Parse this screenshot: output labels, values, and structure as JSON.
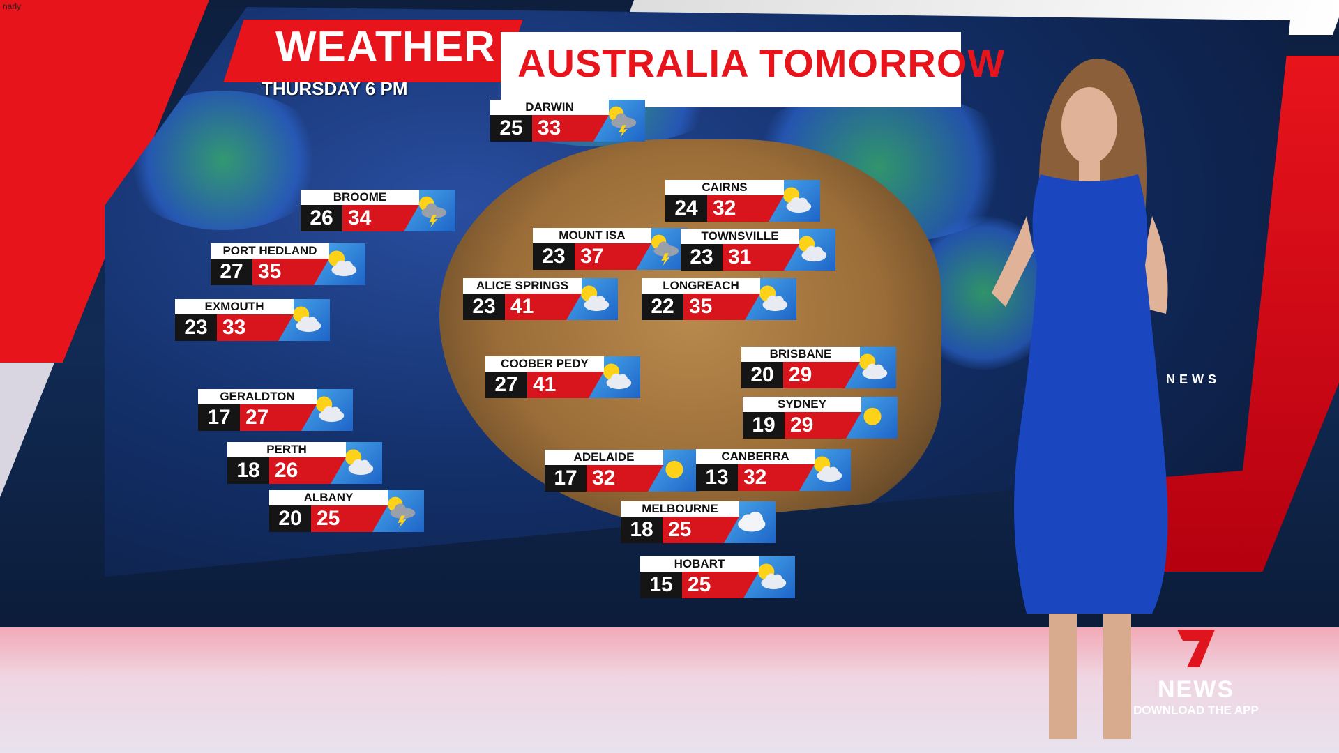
{
  "overlay": {
    "channel_tag": "narly"
  },
  "header": {
    "title_left": "WEATHER",
    "title_right": "AUSTRALIA TOMORROW",
    "subtitle": "THURSDAY 6 PM"
  },
  "colors": {
    "brand_red": "#e8141c",
    "min_box": "#151515",
    "icon_bg": "#1e64c8"
  },
  "cities": [
    {
      "name": "DARWIN",
      "min": "25",
      "max": "33",
      "icon": "storm"
    },
    {
      "name": "BROOME",
      "min": "26",
      "max": "34",
      "icon": "storm"
    },
    {
      "name": "PORT HEDLAND",
      "min": "27",
      "max": "35",
      "icon": "sun-cloud"
    },
    {
      "name": "EXMOUTH",
      "min": "23",
      "max": "33",
      "icon": "sun-cloud"
    },
    {
      "name": "GERALDTON",
      "min": "17",
      "max": "27",
      "icon": "sun-cloud"
    },
    {
      "name": "PERTH",
      "min": "18",
      "max": "26",
      "icon": "sun-cloud"
    },
    {
      "name": "ALBANY",
      "min": "20",
      "max": "25",
      "icon": "storm"
    },
    {
      "name": "CAIRNS",
      "min": "24",
      "max": "32",
      "icon": "sun-cloud"
    },
    {
      "name": "MOUNT ISA",
      "min": "23",
      "max": "37",
      "icon": "storm"
    },
    {
      "name": "TOWNSVILLE",
      "min": "23",
      "max": "31",
      "icon": "sun-cloud"
    },
    {
      "name": "ALICE SPRINGS",
      "min": "23",
      "max": "41",
      "icon": "sun-cloud"
    },
    {
      "name": "LONGREACH",
      "min": "22",
      "max": "35",
      "icon": "sun-cloud"
    },
    {
      "name": "COOBER PEDY",
      "min": "27",
      "max": "41",
      "icon": "sun-cloud"
    },
    {
      "name": "BRISBANE",
      "min": "20",
      "max": "29",
      "icon": "sun-cloud"
    },
    {
      "name": "SYDNEY",
      "min": "19",
      "max": "29",
      "icon": "sun"
    },
    {
      "name": "ADELAIDE",
      "min": "17",
      "max": "32",
      "icon": "sun"
    },
    {
      "name": "CANBERRA",
      "min": "13",
      "max": "32",
      "icon": "sun-cloud"
    },
    {
      "name": "MELBOURNE",
      "min": "18",
      "max": "25",
      "icon": "cloud"
    },
    {
      "name": "HOBART",
      "min": "15",
      "max": "25",
      "icon": "sun-cloud"
    }
  ],
  "wall_text": "NEWS",
  "logo": {
    "brand": "NEWS",
    "tagline": "DOWNLOAD THE APP"
  }
}
